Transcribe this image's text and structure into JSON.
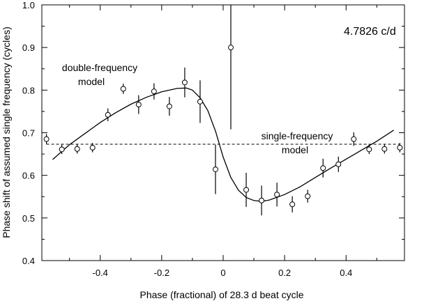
{
  "chart_data": {
    "type": "scatter",
    "xlabel": "Phase (fractional) of 28.3 d beat cycle",
    "ylabel": "Phase shift of assumed single frequency (cycles)",
    "xlim": [
      -0.59,
      0.59
    ],
    "ylim": [
      0.4,
      1.0
    ],
    "x_ticks": [
      -0.4,
      -0.2,
      0,
      0.2,
      0.4
    ],
    "x_tick_labels": [
      "-0.4",
      "-0.2",
      "0",
      "0.2",
      "0.4"
    ],
    "y_ticks": [
      0.4,
      0.5,
      0.6,
      0.7,
      0.8,
      0.9,
      1.0
    ],
    "y_tick_labels": [
      "0.4",
      "0.5",
      "0.6",
      "0.7",
      "0.8",
      "0.9",
      "1.0"
    ],
    "frequency_label": "4.7826 c/d",
    "series": [
      {
        "type": "points_with_errorbars",
        "x": [
          -0.575,
          -0.525,
          -0.475,
          -0.425,
          -0.375,
          -0.325,
          -0.275,
          -0.225,
          -0.175,
          -0.125,
          -0.075,
          -0.025,
          0.025,
          0.075,
          0.125,
          0.175,
          0.225,
          0.275,
          0.325,
          0.375,
          0.425,
          0.475,
          0.525,
          0.575
        ],
        "y": [
          0.685,
          0.661,
          0.662,
          0.665,
          0.742,
          0.803,
          0.766,
          0.797,
          0.762,
          0.818,
          0.773,
          0.614,
          0.9,
          0.566,
          0.541,
          0.555,
          0.532,
          0.551,
          0.617,
          0.626,
          0.685,
          0.661,
          0.662,
          0.665
        ],
        "err": [
          0.012,
          0.011,
          0.011,
          0.011,
          0.015,
          0.012,
          0.022,
          0.019,
          0.022,
          0.035,
          0.05,
          0.058,
          0.192,
          0.04,
          0.035,
          0.028,
          0.019,
          0.015,
          0.022,
          0.018,
          0.016,
          0.011,
          0.011,
          0.011
        ]
      },
      {
        "name": "double-frequency model",
        "type": "line",
        "style": "solid",
        "x": [
          -0.555,
          -0.5,
          -0.45,
          -0.4,
          -0.35,
          -0.3,
          -0.25,
          -0.2,
          -0.15,
          -0.12,
          -0.1,
          -0.075,
          -0.05,
          -0.025,
          0,
          0.025,
          0.05,
          0.075,
          0.1,
          0.125,
          0.15,
          0.2,
          0.25,
          0.3,
          0.35,
          0.4,
          0.45,
          0.5,
          0.555
        ],
        "y": [
          0.637,
          0.672,
          0.698,
          0.724,
          0.747,
          0.767,
          0.783,
          0.796,
          0.804,
          0.805,
          0.8,
          0.782,
          0.752,
          0.704,
          0.643,
          0.595,
          0.565,
          0.548,
          0.541,
          0.539,
          0.542,
          0.555,
          0.573,
          0.595,
          0.617,
          0.638,
          0.659,
          0.68,
          0.706
        ]
      },
      {
        "name": "single-frequency model",
        "type": "line",
        "style": "dashed",
        "x": [
          -0.575,
          0.575
        ],
        "y": [
          0.673,
          0.673
        ]
      }
    ],
    "annotations": [
      {
        "text_lines": [
          "double-frequency",
          "model"
        ],
        "x": -0.42,
        "y": 0.82
      },
      {
        "text_lines": [
          "single-frequency",
          "model"
        ],
        "x": 0.17,
        "y": 0.67
      }
    ]
  }
}
